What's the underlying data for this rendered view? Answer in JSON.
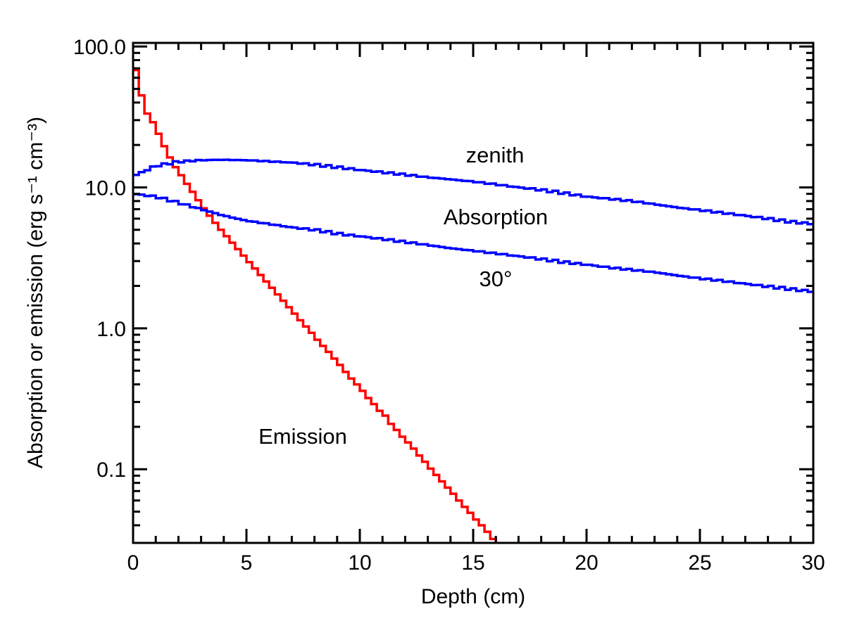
{
  "chart_data": {
    "type": "line",
    "style": "histogram-steps",
    "xlabel": "Depth (cm)",
    "ylabel": "Absorption or emission (erg s⁻¹ cm⁻³)",
    "xlim": [
      0,
      30
    ],
    "ylim": [
      0.03,
      106
    ],
    "yscale": "log",
    "grid": false,
    "x_ticks": [
      0,
      5,
      10,
      15,
      20,
      25,
      30
    ],
    "x_tick_labels": [
      "0",
      "5",
      "10",
      "15",
      "20",
      "25",
      "30"
    ],
    "y_ticks": [
      0.1,
      1,
      10,
      100
    ],
    "y_tick_labels": [
      "0.1",
      "1.0",
      "10.0",
      "100.0"
    ],
    "annotations": {
      "zenith": "zenith",
      "absorption": "Absorption",
      "angle": "30°",
      "emission": "Emission"
    },
    "series": [
      {
        "key": "emission",
        "color": "#ff0000",
        "bin_width": 0.25,
        "x_start": 0,
        "values": [
          68,
          45,
          33.4,
          29,
          24,
          19.6,
          16.3,
          13.9,
          12.2,
          10.6,
          9.3,
          8.1,
          7.1,
          6.3,
          5.6,
          5.0,
          4.5,
          4.05,
          3.65,
          3.28,
          2.95,
          2.66,
          2.39,
          2.15,
          1.94,
          1.74,
          1.57,
          1.41,
          1.27,
          1.14,
          1.03,
          0.93,
          0.83,
          0.75,
          0.68,
          0.61,
          0.55,
          0.49,
          0.44,
          0.4,
          0.36,
          0.32,
          0.29,
          0.26,
          0.24,
          0.21,
          0.19,
          0.17,
          0.155,
          0.14,
          0.125,
          0.113,
          0.101,
          0.091,
          0.082,
          0.074,
          0.067,
          0.06,
          0.054,
          0.049,
          0.044,
          0.04,
          0.036,
          0.032
        ]
      },
      {
        "key": "absorption-zenith",
        "color": "#0000ff",
        "x": [
          0,
          1,
          2,
          3,
          4,
          5,
          6,
          7,
          8,
          9,
          10,
          11,
          12,
          13,
          14,
          15,
          16,
          17,
          18,
          19,
          20,
          21,
          22,
          23,
          24,
          25,
          26,
          27,
          28,
          29,
          30
        ],
        "values": [
          12.0,
          14.2,
          15.2,
          15.6,
          15.7,
          15.6,
          15.3,
          15.0,
          14.5,
          13.9,
          13.3,
          12.8,
          12.3,
          11.8,
          11.4,
          11.0,
          10.5,
          10.0,
          9.6,
          9.1,
          8.6,
          8.3,
          8.0,
          7.6,
          7.2,
          6.9,
          6.6,
          6.3,
          6.0,
          5.7,
          5.5
        ]
      },
      {
        "key": "absorption-30deg",
        "color": "#0000ff",
        "x": [
          0,
          1,
          2,
          3,
          4,
          5,
          6,
          7,
          8,
          9,
          10,
          11,
          12,
          13,
          14,
          15,
          16,
          17,
          18,
          19,
          20,
          21,
          22,
          23,
          24,
          25,
          26,
          27,
          28,
          29,
          30
        ],
        "values": [
          9.0,
          8.6,
          7.8,
          7.0,
          6.3,
          5.8,
          5.5,
          5.2,
          5.0,
          4.7,
          4.5,
          4.3,
          4.1,
          3.9,
          3.7,
          3.55,
          3.4,
          3.25,
          3.1,
          2.95,
          2.83,
          2.7,
          2.6,
          2.5,
          2.37,
          2.26,
          2.17,
          2.07,
          1.98,
          1.9,
          1.82
        ]
      }
    ]
  }
}
